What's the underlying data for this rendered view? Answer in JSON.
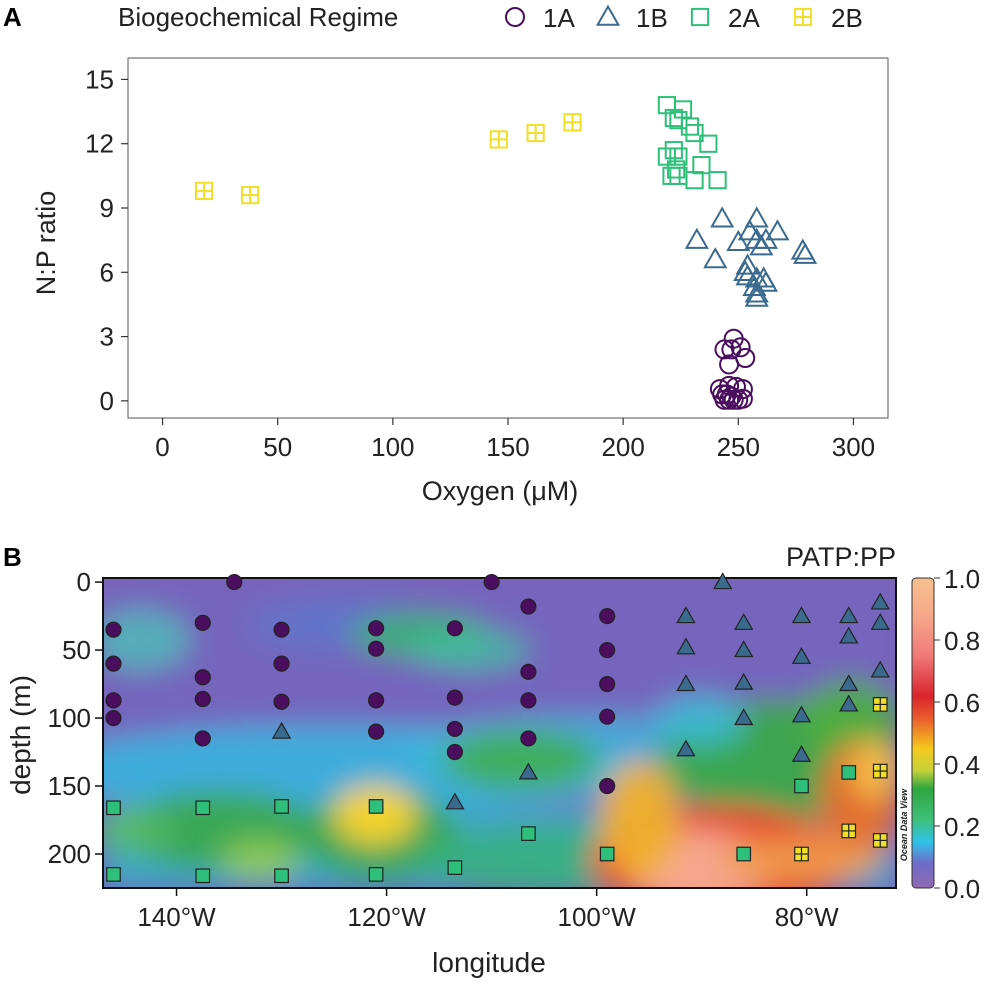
{
  "legend": {
    "title": "Biogeochemical Regime",
    "items": [
      {
        "label": "1A",
        "shape": "circle",
        "color": "#4b0d5e"
      },
      {
        "label": "1B",
        "shape": "triangle",
        "color": "#3a6b8f"
      },
      {
        "label": "2A",
        "shape": "square",
        "color": "#2ebf7a"
      },
      {
        "label": "2B",
        "shape": "square-plus",
        "color": "#f0df28"
      }
    ]
  },
  "chart_data": [
    {
      "panel": "A",
      "type": "scatter",
      "xlabel": "Oxygen (μM)",
      "ylabel": "N:P ratio",
      "xlim": [
        -15,
        315
      ],
      "ylim": [
        -0.8,
        16
      ],
      "xticks": [
        0,
        50,
        100,
        150,
        200,
        250,
        300
      ],
      "yticks": [
        0,
        3,
        6,
        9,
        12,
        15
      ],
      "series": [
        {
          "name": "1A",
          "points": [
            [
              248,
              2.9
            ],
            [
              247,
              2.4
            ],
            [
              251,
              2.5
            ],
            [
              244,
              2.4
            ],
            [
              253,
              2.0
            ],
            [
              246,
              1.7
            ],
            [
              246,
              0.7
            ],
            [
              249,
              0.65
            ],
            [
              242,
              0.55
            ],
            [
              252,
              0.55
            ],
            [
              245,
              0.3
            ],
            [
              244,
              0.05
            ],
            [
              246,
              0.05
            ],
            [
              248,
              0.05
            ],
            [
              250,
              0.05
            ],
            [
              252,
              0.1
            ],
            [
              243,
              0.3
            ],
            [
              247,
              0.2
            ]
          ]
        },
        {
          "name": "1B",
          "points": [
            [
              243,
              8.5
            ],
            [
              258,
              8.5
            ],
            [
              267,
              7.9
            ],
            [
              255,
              7.9
            ],
            [
              232,
              7.5
            ],
            [
              250,
              7.4
            ],
            [
              262,
              7.5
            ],
            [
              260,
              7.2
            ],
            [
              258,
              7.5
            ],
            [
              278,
              7.0
            ],
            [
              279,
              6.8
            ],
            [
              240,
              6.6
            ],
            [
              254,
              6.3
            ],
            [
              253,
              6.0
            ],
            [
              254,
              5.8
            ],
            [
              261,
              5.7
            ],
            [
              258,
              5.7
            ],
            [
              262,
              5.5
            ],
            [
              257,
              5.3
            ],
            [
              258,
              5.0
            ],
            [
              258,
              4.8
            ]
          ]
        },
        {
          "name": "2A",
          "points": [
            [
              219,
              13.8
            ],
            [
              226,
              13.6
            ],
            [
              222,
              13.2
            ],
            [
              224,
              13.1
            ],
            [
              229,
              12.8
            ],
            [
              231,
              12.5
            ],
            [
              237,
              12.0
            ],
            [
              222,
              11.7
            ],
            [
              219,
              11.4
            ],
            [
              224,
              11.4
            ],
            [
              234,
              11.0
            ],
            [
              223,
              10.8
            ],
            [
              221,
              10.5
            ],
            [
              224,
              10.5
            ],
            [
              231,
              10.3
            ],
            [
              241,
              10.3
            ]
          ]
        },
        {
          "name": "2B",
          "points": [
            [
              18,
              9.8
            ],
            [
              38,
              9.6
            ],
            [
              146,
              12.2
            ],
            [
              162,
              12.5
            ],
            [
              178,
              13.0
            ]
          ]
        }
      ]
    },
    {
      "panel": "B",
      "type": "scatter",
      "title": "PATP:PP",
      "xlabel": "longitude",
      "ylabel": "depth (m)",
      "xlim": [
        -147,
        -71.5
      ],
      "ylim": [
        225,
        -3
      ],
      "xticks": [
        -140,
        -120,
        -100,
        -80
      ],
      "xtick_labels": [
        "140°W",
        "120°W",
        "100°W",
        "80°W"
      ],
      "yticks": [
        0,
        50,
        100,
        150,
        200
      ],
      "colorbar": {
        "min": 0.0,
        "max": 1.0,
        "ticks": [
          "0.0",
          "0.2",
          "0.4",
          "0.6",
          "0.8",
          "1.0"
        ],
        "watermark": "Ocean Data View"
      },
      "series": [
        {
          "name": "1A",
          "points": [
            [
              -134.5,
              0
            ],
            [
              -110,
              0
            ],
            [
              -146,
              35
            ],
            [
              -137.5,
              30
            ],
            [
              -130,
              35
            ],
            [
              -121,
              34
            ],
            [
              -113.5,
              34
            ],
            [
              -106.5,
              18
            ],
            [
              -99,
              25
            ],
            [
              -146,
              60
            ],
            [
              -137.5,
              70
            ],
            [
              -130,
              60
            ],
            [
              -121,
              49
            ],
            [
              -106.5,
              66
            ],
            [
              -99,
              50
            ],
            [
              -146,
              87
            ],
            [
              -137.5,
              86
            ],
            [
              -130,
              88
            ],
            [
              -121,
              87
            ],
            [
              -113.5,
              85
            ],
            [
              -106.5,
              87
            ],
            [
              -99,
              75
            ],
            [
              -146,
              100
            ],
            [
              -137.5,
              115
            ],
            [
              -121,
              110
            ],
            [
              -113.5,
              108
            ],
            [
              -113.5,
              125
            ],
            [
              -106.5,
              115
            ],
            [
              -99,
              99
            ],
            [
              -99,
              150
            ]
          ]
        },
        {
          "name": "1B",
          "points": [
            [
              -88,
              0
            ],
            [
              -91.5,
              25
            ],
            [
              -86,
              30
            ],
            [
              -80.5,
              25
            ],
            [
              -76,
              25
            ],
            [
              -73,
              15
            ],
            [
              -73,
              30
            ],
            [
              -91.5,
              48
            ],
            [
              -86,
              50
            ],
            [
              -80.5,
              55
            ],
            [
              -76,
              40
            ],
            [
              -91.5,
              75
            ],
            [
              -86,
              74
            ],
            [
              -76,
              75
            ],
            [
              -73,
              65
            ],
            [
              -130,
              110
            ],
            [
              -91.5,
              123
            ],
            [
              -86,
              100
            ],
            [
              -80.5,
              98
            ],
            [
              -80.5,
              127
            ],
            [
              -76,
              90
            ],
            [
              -106.5,
              140
            ],
            [
              -113.5,
              162
            ]
          ]
        },
        {
          "name": "2A",
          "points": [
            [
              -146,
              166
            ],
            [
              -137.5,
              166
            ],
            [
              -130,
              165
            ],
            [
              -121,
              165
            ],
            [
              -106.5,
              185
            ],
            [
              -113.5,
              210
            ],
            [
              -121,
              215
            ],
            [
              -130,
              216
            ],
            [
              -137.5,
              216
            ],
            [
              -146,
              215
            ],
            [
              -99,
              200
            ],
            [
              -86,
              200
            ],
            [
              -80.5,
              150
            ],
            [
              -76,
              140
            ]
          ]
        },
        {
          "name": "2B",
          "points": [
            [
              -73,
              90
            ],
            [
              -73,
              139
            ],
            [
              -76,
              183
            ],
            [
              -73,
              190
            ],
            [
              -80.5,
              200
            ]
          ]
        }
      ]
    }
  ],
  "panels": {
    "a_letter": "A",
    "b_letter": "B"
  }
}
